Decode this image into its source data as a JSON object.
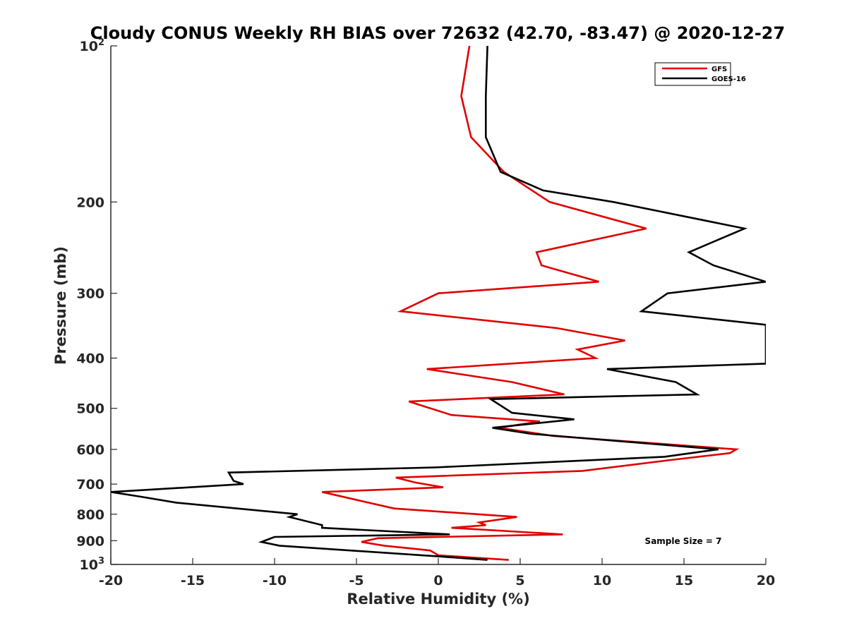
{
  "chart_data": {
    "type": "line",
    "title": "Cloudy CONUS Weekly RH BIAS over 72632 (42.70, -83.47) @ 2020-12-27",
    "xlabel": "Relative Humidity (%)",
    "ylabel": "Pressure (mb)",
    "xlim": [
      -20,
      20
    ],
    "ylim": [
      100,
      1000
    ],
    "y_scale": "log",
    "y_reversed": true,
    "x_ticks": [
      -20,
      -15,
      -10,
      -5,
      0,
      5,
      10,
      15,
      20
    ],
    "x_tick_labels": [
      "-20",
      "-15",
      "-10",
      "-5",
      "0",
      "5",
      "10",
      "15",
      "20"
    ],
    "y_ticks": [
      100,
      200,
      300,
      400,
      500,
      600,
      700,
      800,
      900,
      1000
    ],
    "y_tick_labels": [
      {
        "text": "10",
        "sup": "2"
      },
      {
        "text": "200"
      },
      {
        "text": "300"
      },
      {
        "text": "400"
      },
      {
        "text": "500"
      },
      {
        "text": "600"
      },
      {
        "text": "700"
      },
      {
        "text": "800"
      },
      {
        "text": "900"
      },
      {
        "text": "10",
        "sup": "3"
      }
    ],
    "grid": false,
    "legend_position": "top-right",
    "annotation": "Sample Size = 7",
    "series": [
      {
        "name": "GFS",
        "color": "#e00000",
        "points": [
          [
            1.9,
            100
          ],
          [
            1.4,
            125
          ],
          [
            2.0,
            150
          ],
          [
            4.0,
            175
          ],
          [
            6.8,
            200
          ],
          [
            12.7,
            225
          ],
          [
            6.0,
            250
          ],
          [
            6.3,
            265
          ],
          [
            9.8,
            285
          ],
          [
            0.0,
            300
          ],
          [
            -2.3,
            325
          ],
          [
            7.2,
            350
          ],
          [
            11.4,
            370
          ],
          [
            8.5,
            385
          ],
          [
            9.6,
            400
          ],
          [
            -0.7,
            420
          ],
          [
            4.5,
            445
          ],
          [
            7.7,
            470
          ],
          [
            -1.8,
            485
          ],
          [
            0.8,
            515
          ],
          [
            6.2,
            530
          ],
          [
            3.7,
            545
          ],
          [
            7.0,
            565
          ],
          [
            18.2,
            600
          ],
          [
            17.8,
            610
          ],
          [
            14.0,
            630
          ],
          [
            8.8,
            660
          ],
          [
            -2.6,
            680
          ],
          [
            -1.4,
            695
          ],
          [
            0.3,
            710
          ],
          [
            -7.1,
            725
          ],
          [
            -2.7,
            780
          ],
          [
            4.8,
            810
          ],
          [
            2.5,
            830
          ],
          [
            2.9,
            840
          ],
          [
            0.8,
            850
          ],
          [
            7.6,
            875
          ],
          [
            -3.7,
            890
          ],
          [
            -4.7,
            905
          ],
          [
            -3.3,
            920
          ],
          [
            -0.5,
            940
          ],
          [
            0.0,
            960
          ],
          [
            4.3,
            980
          ]
        ]
      },
      {
        "name": "GOES-16",
        "color": "#000000",
        "points": [
          [
            3.0,
            100
          ],
          [
            2.9,
            125
          ],
          [
            2.9,
            150
          ],
          [
            3.8,
            175
          ],
          [
            6.4,
            190
          ],
          [
            10.7,
            200
          ],
          [
            18.7,
            225
          ],
          [
            15.3,
            250
          ],
          [
            16.8,
            265
          ],
          [
            20.0,
            285
          ],
          [
            14.0,
            300
          ],
          [
            12.4,
            325
          ],
          [
            20.0,
            345
          ],
          [
            20.0,
            410
          ],
          [
            10.3,
            420
          ],
          [
            14.5,
            445
          ],
          [
            15.8,
            470
          ],
          [
            3.2,
            480
          ],
          [
            4.5,
            510
          ],
          [
            8.3,
            525
          ],
          [
            3.3,
            545
          ],
          [
            5.7,
            560
          ],
          [
            17.1,
            600
          ],
          [
            13.8,
            620
          ],
          [
            -0.2,
            650
          ],
          [
            -12.8,
            665
          ],
          [
            -12.5,
            690
          ],
          [
            -11.9,
            700
          ],
          [
            -20.0,
            725
          ],
          [
            -18.2,
            740
          ],
          [
            -16.0,
            760
          ],
          [
            -8.6,
            800
          ],
          [
            -9.1,
            810
          ],
          [
            -7.1,
            840
          ],
          [
            -7.1,
            850
          ],
          [
            0.7,
            875
          ],
          [
            -10.0,
            885
          ],
          [
            -10.8,
            905
          ],
          [
            -9.7,
            920
          ],
          [
            -3.2,
            950
          ],
          [
            0.0,
            965
          ],
          [
            3.0,
            980
          ]
        ]
      }
    ]
  }
}
